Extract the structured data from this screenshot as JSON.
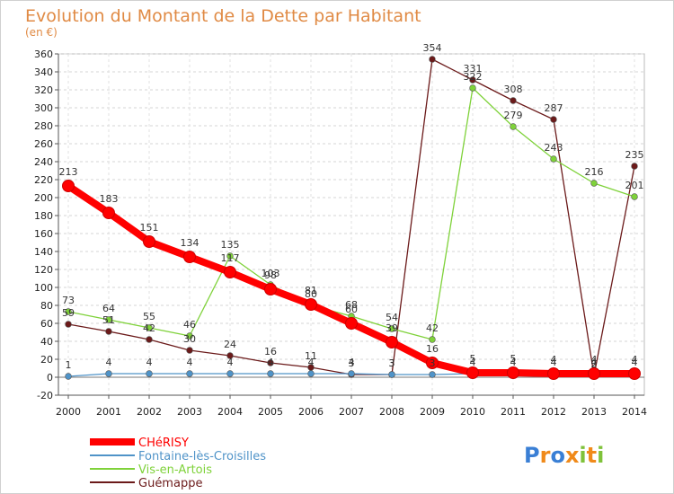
{
  "chart_data": {
    "type": "line",
    "title": "Evolution du Montant de la Dette par Habitant",
    "subtitle": "(en €)",
    "x": [
      "2000",
      "2001",
      "2002",
      "2003",
      "2004",
      "2005",
      "2006",
      "2007",
      "2008",
      "2009",
      "2010",
      "2011",
      "2012",
      "2013",
      "2014"
    ],
    "ylim": [
      -20,
      360
    ],
    "yticks": [
      -20,
      0,
      20,
      40,
      60,
      80,
      100,
      120,
      140,
      160,
      180,
      200,
      220,
      240,
      260,
      280,
      300,
      320,
      340,
      360
    ],
    "grid": true,
    "legend_position": "bottom-left",
    "series": [
      {
        "name": "Guémappe",
        "color": "#6b1a1a",
        "values": [
          59,
          51,
          42,
          30,
          24,
          16,
          11,
          3,
          3,
          354,
          331,
          308,
          287,
          2,
          235
        ],
        "labels": [
          "59",
          "51",
          "42",
          "30",
          "24",
          "16",
          "11",
          "3",
          "3",
          "354",
          "331",
          "308",
          "287",
          "2",
          "235"
        ]
      },
      {
        "name": "Vis-en-Artois",
        "color": "#7fd23a",
        "values": [
          73,
          64,
          55,
          46,
          135,
          103,
          80,
          68,
          54,
          42,
          322,
          279,
          243,
          216,
          201
        ],
        "labels": [
          "73",
          "64",
          "55",
          "46",
          "135",
          "103",
          "80",
          "68",
          "54",
          "42",
          "322",
          "279",
          "243",
          "216",
          "201"
        ]
      },
      {
        "name": "Fontaine-lès-Croisilles",
        "color": "#4f93c8",
        "values": [
          1,
          4,
          4,
          4,
          4,
          4,
          4,
          4,
          3,
          3,
          4,
          4,
          4,
          4,
          4
        ],
        "labels": [
          "1",
          "4",
          "4",
          "4",
          "4",
          "4",
          "4",
          "4",
          "3",
          "3",
          "4",
          "4",
          "4",
          "4",
          "4"
        ]
      },
      {
        "name": "CHéRISY",
        "color": "#ff0000",
        "values": [
          213,
          183,
          151,
          134,
          117,
          98,
          81,
          60,
          39,
          16,
          5,
          5,
          4,
          4,
          4
        ],
        "labels": [
          "213",
          "183",
          "151",
          "134",
          "117",
          "98",
          "81",
          "60",
          "39",
          "16",
          "5",
          "5",
          "4",
          "4",
          "4"
        ]
      }
    ]
  },
  "legend_order": [
    "CHéRISY",
    "Fontaine-lès-Croisilles",
    "Vis-en-Artois",
    "Guémappe"
  ],
  "brand": {
    "logo_text": "Proxiti",
    "letter_colors": [
      "#3a7fd5",
      "#f08a1a",
      "#3a7fd5",
      "#f08a1a",
      "#7fc23a",
      "#f08a1a",
      "#7fc23a"
    ]
  }
}
